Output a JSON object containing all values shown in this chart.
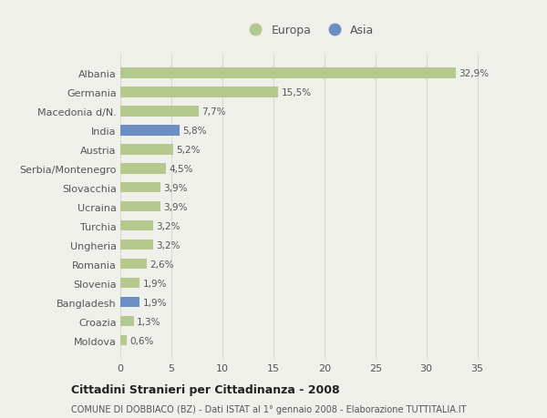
{
  "categories": [
    "Albania",
    "Germania",
    "Macedonia d/N.",
    "India",
    "Austria",
    "Serbia/Montenegro",
    "Slovacchia",
    "Ucraina",
    "Turchia",
    "Ungheria",
    "Romania",
    "Slovenia",
    "Bangladesh",
    "Croazia",
    "Moldova"
  ],
  "values": [
    32.9,
    15.5,
    7.7,
    5.8,
    5.2,
    4.5,
    3.9,
    3.9,
    3.2,
    3.2,
    2.6,
    1.9,
    1.9,
    1.3,
    0.6
  ],
  "labels": [
    "32,9%",
    "15,5%",
    "7,7%",
    "5,8%",
    "5,2%",
    "4,5%",
    "3,9%",
    "3,9%",
    "3,2%",
    "3,2%",
    "2,6%",
    "1,9%",
    "1,9%",
    "1,3%",
    "0,6%"
  ],
  "continent": [
    "Europa",
    "Europa",
    "Europa",
    "Asia",
    "Europa",
    "Europa",
    "Europa",
    "Europa",
    "Europa",
    "Europa",
    "Europa",
    "Europa",
    "Asia",
    "Europa",
    "Europa"
  ],
  "color_europa": "#b5c98e",
  "color_asia": "#6b8ec4",
  "background_color": "#f0f0eb",
  "grid_color": "#d8d8d8",
  "title_main": "Cittadini Stranieri per Cittadinanza - 2008",
  "title_sub": "COMUNE DI DOBBIACO (BZ) - Dati ISTAT al 1° gennaio 2008 - Elaborazione TUTTITALIA.IT",
  "legend_europa": "Europa",
  "legend_asia": "Asia",
  "xlim": [
    0,
    37
  ],
  "xticks": [
    0,
    5,
    10,
    15,
    20,
    25,
    30,
    35
  ]
}
